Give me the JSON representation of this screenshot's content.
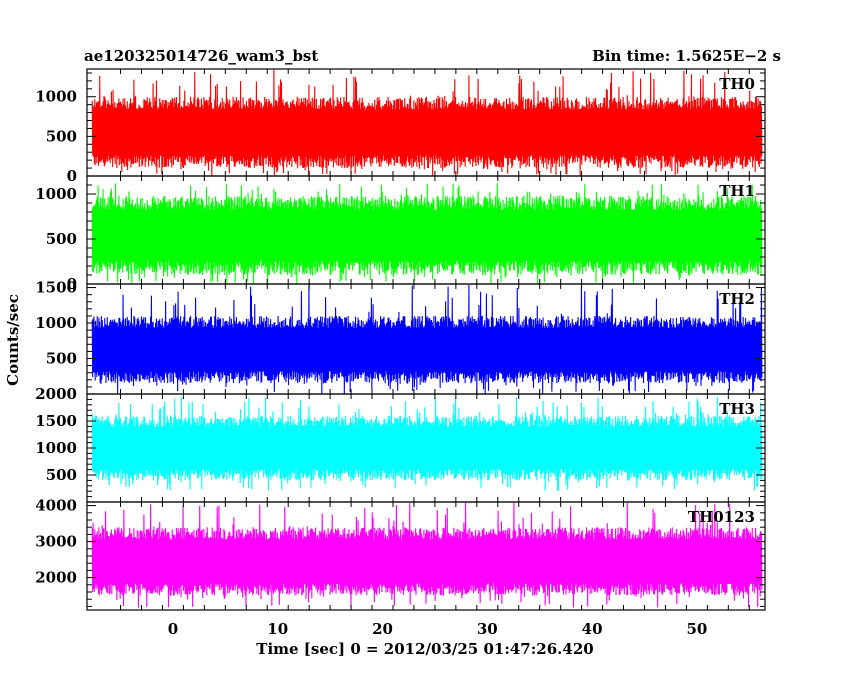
{
  "chart_data": {
    "type": "line",
    "title_left": "ae120325014726_wam3_bst",
    "title_right": "Bin time: 1.5625E−2 s",
    "xlabel": "Time [sec] 0 = 2012/03/25 01:47:26.420",
    "ylabel": "Counts/sec",
    "xlim": [
      -8.2,
      56.5
    ],
    "data_x_range": [
      -7.7,
      56.2
    ],
    "xticks": [
      0,
      10,
      20,
      30,
      40,
      50
    ],
    "panels": [
      {
        "name": "TH0",
        "color": "#ff0000",
        "ylim": [
          0,
          1350
        ],
        "yticks": [
          0,
          500,
          1000
        ],
        "typical_range": [
          100,
          1000
        ],
        "min": 0,
        "max": 1350
      },
      {
        "name": "TH1",
        "color": "#00ff00",
        "ylim": [
          0,
          1200
        ],
        "yticks": [
          0,
          500,
          1000
        ],
        "typical_range": [
          100,
          980
        ],
        "min": 0,
        "max": 1120
      },
      {
        "name": "TH2",
        "color": "#0000ff",
        "ylim": [
          0,
          1550
        ],
        "yticks": [
          500,
          1000,
          1500
        ],
        "typical_range": [
          150,
          1100
        ],
        "min": 0,
        "max": 1540
      },
      {
        "name": "TH3",
        "color": "#00ffff",
        "ylim": [
          0,
          2000
        ],
        "yticks": [
          500,
          1000,
          1500,
          2000
        ],
        "typical_range": [
          400,
          1600
        ],
        "min": 200,
        "max": 1950
      },
      {
        "name": "TH0123",
        "color": "#ff00ff",
        "ylim": [
          1100,
          4100
        ],
        "yticks": [
          2000,
          3000,
          4000
        ],
        "typical_range": [
          1500,
          3400
        ],
        "min": 1150,
        "max": 4100
      }
    ]
  }
}
